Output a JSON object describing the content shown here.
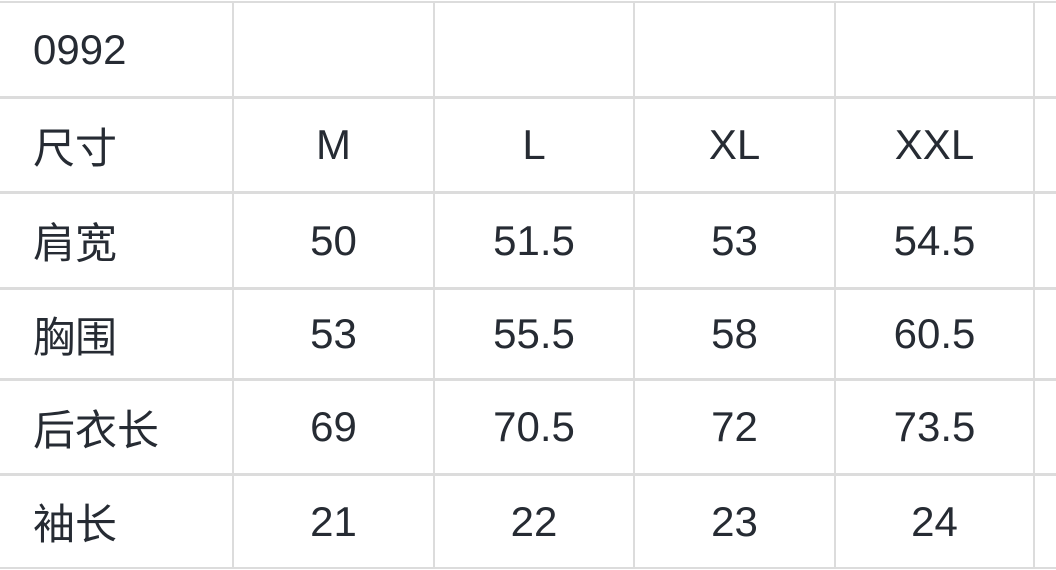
{
  "size_chart": {
    "product_code": "0992",
    "header": {
      "label": "尺寸",
      "sizes": [
        "M",
        "L",
        "XL",
        "XXL"
      ]
    },
    "rows": [
      {
        "label": "肩宽",
        "values": [
          "50",
          "51.5",
          "53",
          "54.5"
        ]
      },
      {
        "label": "胸围",
        "values": [
          "53",
          "55.5",
          "58",
          "60.5"
        ]
      },
      {
        "label": "后衣长",
        "values": [
          "69",
          "70.5",
          "72",
          "73.5"
        ]
      },
      {
        "label": "袖长",
        "values": [
          "21",
          "22",
          "23",
          "24"
        ]
      }
    ],
    "colors": {
      "background": "#ffffff",
      "grid_line": "#dcdcdc",
      "text": "#262b33"
    }
  }
}
